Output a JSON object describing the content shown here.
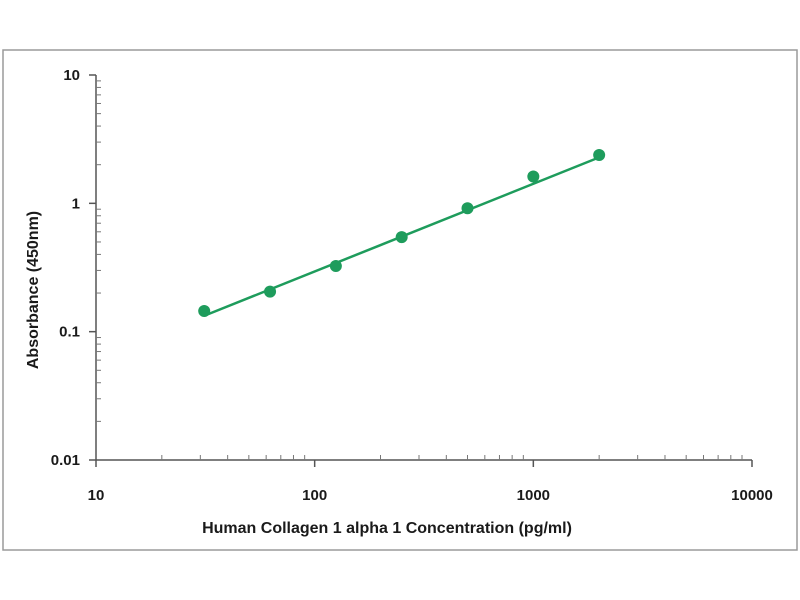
{
  "chart_data": {
    "type": "scatter",
    "title": "",
    "xlabel": "Human Collagen 1 alpha 1 Concentration (pg/ml)",
    "ylabel": "Absorbance (450nm)",
    "xscale": "log",
    "yscale": "log",
    "xlim": [
      10,
      10000
    ],
    "ylim": [
      0.01,
      10
    ],
    "x_ticks": [
      "10",
      "100",
      "1000",
      "10000"
    ],
    "y_ticks": [
      "0.01",
      "0.1",
      "1",
      "10"
    ],
    "grid": false,
    "legend": "none",
    "series": [
      {
        "x": [
          31.25,
          62.5,
          125,
          250,
          500,
          1000,
          2000
        ],
        "y": [
          0.145,
          0.205,
          0.325,
          0.545,
          0.915,
          1.62,
          2.38
        ],
        "marker_color": "#1e9c5c"
      }
    ],
    "fit_line": {
      "x": [
        31.25,
        2000
      ],
      "y": [
        0.133,
        2.28
      ],
      "color": "#1e9c5c"
    }
  }
}
